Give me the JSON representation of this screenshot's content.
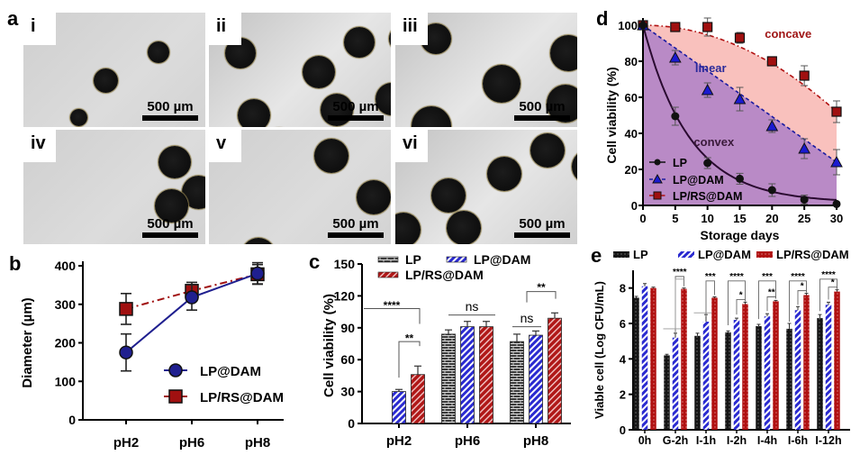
{
  "panel_a": {
    "letter": "a",
    "images": [
      {
        "label": "i",
        "scale_label": "500 µm",
        "tone": "light"
      },
      {
        "label": "ii",
        "scale_label": "500 µm",
        "tone": "dark"
      },
      {
        "label": "iii",
        "scale_label": "500 µm",
        "tone": "dark"
      },
      {
        "label": "iv",
        "scale_label": "500 µm",
        "tone": "light"
      },
      {
        "label": "v",
        "scale_label": "500 µm",
        "tone": "light"
      },
      {
        "label": "vi",
        "scale_label": "500 µm",
        "tone": "dark"
      }
    ]
  },
  "colors": {
    "navy": "#1f1f8f",
    "darkred": "#a01010",
    "black": "#1a1a1a",
    "purple_fill": "#b98ac6",
    "pink_fill": "#f9c1bd",
    "label_red": "#a01616",
    "label_blue": "#2a2a9a",
    "label_dark": "#3a1a3a"
  },
  "chart_data": [
    {
      "id": "b",
      "letter": "b",
      "type": "line",
      "title": "",
      "xlabel": "",
      "ylabel": "Diameter (µm)",
      "categories": [
        "pH2",
        "pH6",
        "pH8"
      ],
      "ylim": [
        0,
        400
      ],
      "yticks": [
        0,
        100,
        200,
        300,
        400
      ],
      "legend": "bottom-right",
      "series": [
        {
          "name": "LP@DAM",
          "marker": "circle",
          "style": "solid",
          "values": [
            175,
            318,
            380
          ],
          "errors": [
            48,
            33,
            28
          ]
        },
        {
          "name": "LP/RS@DAM",
          "marker": "square",
          "style": "dashdot",
          "values": [
            288,
            335,
            378
          ],
          "errors": [
            40,
            22,
            25
          ]
        }
      ]
    },
    {
      "id": "c",
      "letter": "c",
      "type": "bar",
      "title": "",
      "xlabel": "",
      "ylabel": "Cell viability (%)",
      "categories": [
        "pH2",
        "pH6",
        "pH8"
      ],
      "ylim": [
        0,
        150
      ],
      "yticks": [
        0,
        30,
        60,
        90,
        120,
        150
      ],
      "legend": "top",
      "series": [
        {
          "name": "LP",
          "pattern": "brick",
          "values": [
            0,
            84,
            77
          ],
          "errors": [
            0,
            4,
            7
          ]
        },
        {
          "name": "LP@DAM",
          "pattern": "hatch",
          "values": [
            30,
            91,
            83
          ],
          "errors": [
            2,
            5,
            4
          ]
        },
        {
          "name": "LP/RS@DAM",
          "pattern": "stripe",
          "values": [
            46,
            91,
            99
          ],
          "errors": [
            8,
            5,
            5
          ]
        }
      ],
      "annotations": [
        {
          "text": "****",
          "group": "pH2",
          "from": 0,
          "to": 2
        },
        {
          "text": "**",
          "group": "pH2",
          "from": 1,
          "to": 2
        },
        {
          "text": "ns",
          "group": "pH6",
          "from": 0,
          "to": 2
        },
        {
          "text": "ns",
          "group": "pH8",
          "from": 0,
          "to": 1
        },
        {
          "text": "**",
          "group": "pH8",
          "from": 1,
          "to": 2
        }
      ]
    },
    {
      "id": "d",
      "letter": "d",
      "type": "line",
      "title": "",
      "xlabel": "Storage days",
      "ylabel": "Cell viability (%)",
      "x": [
        0,
        5,
        10,
        15,
        20,
        25,
        30
      ],
      "xlim": [
        0,
        30
      ],
      "ylim": [
        0,
        100
      ],
      "xticks": [
        0,
        5,
        10,
        15,
        20,
        25,
        30
      ],
      "yticks": [
        0,
        20,
        40,
        60,
        80,
        100
      ],
      "legend": "bottom-left",
      "region_labels": [
        {
          "text": "concave",
          "x": 22.5,
          "y": 93
        },
        {
          "text": "linear",
          "x": 10.5,
          "y": 74
        },
        {
          "text": "convex",
          "x": 11,
          "y": 33
        }
      ],
      "series": [
        {
          "name": "LP",
          "marker": "circle",
          "style": "solid",
          "values": [
            100,
            49.5,
            23.5,
            14.8,
            8.5,
            3.2,
            0.8
          ],
          "errors": [
            0,
            5,
            3,
            3,
            3.5,
            2.5,
            1
          ]
        },
        {
          "name": "LP@DAM",
          "marker": "triangle",
          "style": "dashed",
          "values": [
            100,
            82,
            64,
            59,
            44,
            31.5,
            24
          ],
          "errors": [
            0,
            4,
            4,
            6.5,
            3.5,
            5.5,
            7
          ]
        },
        {
          "name": "LP/RS@DAM",
          "marker": "square",
          "style": "dashdot",
          "values": [
            100,
            99,
            99,
            93,
            80,
            72,
            52
          ],
          "errors": [
            0,
            1,
            5,
            3,
            2,
            5.5,
            6
          ]
        }
      ]
    },
    {
      "id": "e",
      "letter": "e",
      "type": "bar",
      "title": "",
      "xlabel": "",
      "ylabel": "Viable cell (Log CFU/mL)",
      "categories": [
        "0h",
        "G-2h",
        "I-1h",
        "I-2h",
        "I-4h",
        "I-6h",
        "I-12h"
      ],
      "ylim": [
        0,
        9
      ],
      "yticks": [
        0,
        2,
        4,
        6,
        8
      ],
      "legend": "top",
      "series": [
        {
          "name": "LP",
          "pattern": "dots-dark",
          "values": [
            7.45,
            4.2,
            5.3,
            5.5,
            5.85,
            5.7,
            6.3
          ],
          "errors": [
            0.08,
            0.06,
            0.15,
            0.08,
            0.1,
            0.3,
            0.2
          ]
        },
        {
          "name": "LP@DAM",
          "pattern": "hatch",
          "values": [
            8.1,
            5.2,
            6.1,
            6.2,
            6.4,
            6.75,
            7.05
          ],
          "errors": [
            0.15,
            0.25,
            0.4,
            0.1,
            0.15,
            0.2,
            0.15
          ]
        },
        {
          "name": "LP/RS@DAM",
          "pattern": "dots-red",
          "values": [
            8.0,
            7.95,
            7.45,
            7.1,
            7.25,
            7.6,
            7.8
          ],
          "errors": [
            0.05,
            0.05,
            0.05,
            0.1,
            0.05,
            0.1,
            0.1
          ]
        }
      ],
      "annotations": [
        {
          "group": "G-2h",
          "items": [
            {
              "text": "****",
              "from": 1,
              "to": 2
            }
          ]
        },
        {
          "group": "I-1h",
          "items": [
            {
              "text": "***",
              "from": 1,
              "to": 2
            }
          ]
        },
        {
          "group": "I-2h",
          "items": [
            {
              "text": "****",
              "from": 0,
              "to": 2
            },
            {
              "text": "*",
              "from": 1,
              "to": 2
            }
          ]
        },
        {
          "group": "I-4h",
          "items": [
            {
              "text": "***",
              "from": 0,
              "to": 2
            },
            {
              "text": "**",
              "from": 1,
              "to": 2
            }
          ]
        },
        {
          "group": "I-6h",
          "items": [
            {
              "text": "****",
              "from": 0,
              "to": 2
            },
            {
              "text": "*",
              "from": 1,
              "to": 2
            }
          ]
        },
        {
          "group": "I-12h",
          "items": [
            {
              "text": "****",
              "from": 0,
              "to": 2
            },
            {
              "text": "*",
              "from": 1,
              "to": 2
            }
          ]
        }
      ]
    }
  ]
}
